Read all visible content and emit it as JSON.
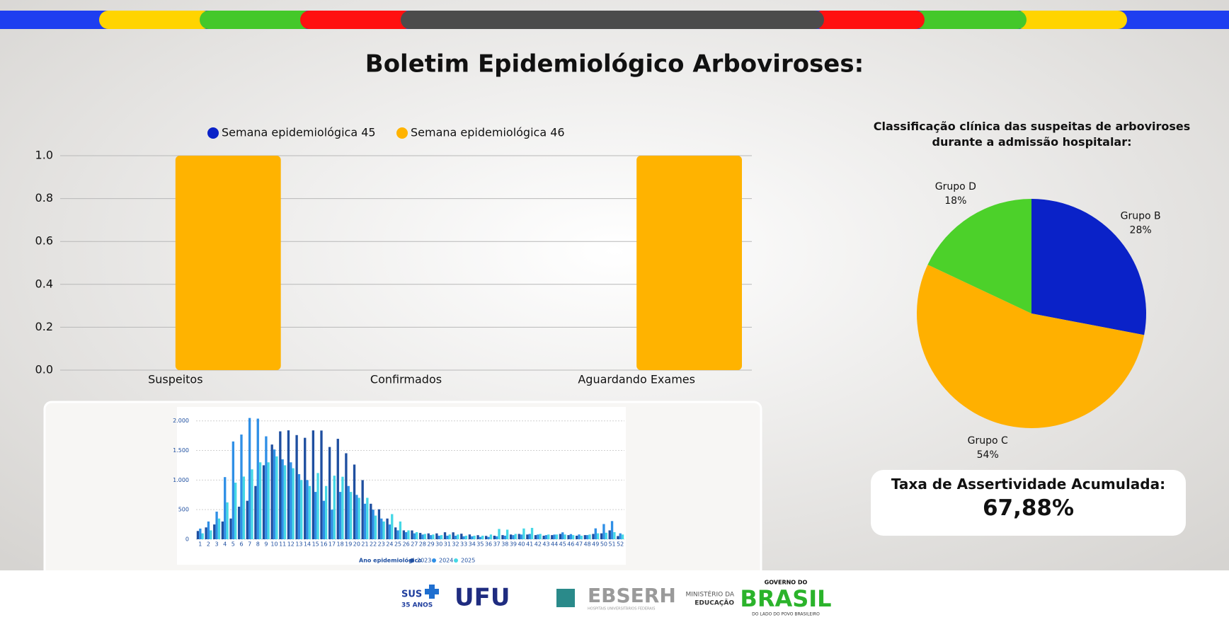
{
  "header": {
    "title": "Boletim Epidemiológico Arboviroses:"
  },
  "chart_data": [
    {
      "type": "bar",
      "categories": [
        "Suspeitos",
        "Confirmados",
        "Aguardando Exames"
      ],
      "series": [
        {
          "name": "Semana epidemiológica 45",
          "color": "#0a22c8",
          "values": [
            0,
            0,
            0
          ]
        },
        {
          "name": "Semana epidemiológica 46",
          "color": "#ffb300",
          "values": [
            1,
            0,
            1
          ]
        }
      ],
      "ylim": [
        0,
        1
      ],
      "yticks": [
        {
          "value": 0,
          "label": "0.0"
        },
        {
          "value": 0.2,
          "label": "0.2"
        },
        {
          "value": 0.4,
          "label": "0.4"
        },
        {
          "value": 0.6,
          "label": "0.6"
        },
        {
          "value": 0.8,
          "label": "0.8"
        },
        {
          "value": 1,
          "label": "1.0"
        }
      ],
      "grid": true,
      "legend": "top"
    },
    {
      "type": "bar",
      "legend_title": "Ano epidemiológico",
      "categories": [
        1,
        2,
        3,
        4,
        5,
        6,
        7,
        8,
        9,
        10,
        11,
        12,
        13,
        14,
        15,
        16,
        17,
        18,
        19,
        20,
        21,
        22,
        23,
        24,
        25,
        26,
        27,
        28,
        29,
        30,
        31,
        32,
        33,
        34,
        35,
        36,
        37,
        38,
        39,
        40,
        41,
        42,
        43,
        44,
        45,
        46,
        47,
        48,
        49,
        50,
        51,
        52
      ],
      "series": [
        {
          "name": "2023",
          "color": "#1f4fa0",
          "values": [
            140,
            200,
            250,
            300,
            350,
            550,
            650,
            900,
            1250,
            1600,
            1823,
            1840,
            1760,
            1714,
            1839,
            1837,
            1559,
            1697,
            1453,
            1262,
            999,
            600,
            506,
            350,
            200,
            150,
            149,
            107,
            99,
            99,
            118,
            117,
            94,
            81,
            69,
            57,
            60,
            70,
            80,
            90,
            80,
            70,
            60,
            70,
            90,
            70,
            60,
            70,
            90,
            100,
            150,
            54
          ]
        },
        {
          "name": "2024",
          "color": "#2f8fe6",
          "values": [
            180,
            300,
            467,
            1050,
            1652,
            1769,
            2049,
            2038,
            1739,
            1517,
            1350,
            1300,
            1100,
            1000,
            800,
            650,
            500,
            800,
            900,
            750,
            600,
            500,
            350,
            250,
            150,
            120,
            100,
            80,
            70,
            60,
            60,
            60,
            50,
            50,
            40,
            40,
            50,
            60,
            70,
            80,
            90,
            80,
            70,
            79,
            117,
            87,
            81,
            70,
            184,
            257,
            307,
            100
          ]
        },
        {
          "name": "2025",
          "color": "#45d8e6",
          "values": [
            100,
            150,
            350,
            623,
            956,
            1059,
            1181,
            1300,
            1300,
            1400,
            1250,
            1200,
            1000,
            900,
            1119,
            900,
            1074,
            1056,
            800,
            700,
            700,
            400,
            300,
            425,
            300,
            150,
            120,
            90,
            80,
            70,
            80,
            80,
            60,
            60,
            60,
            80,
            174,
            162,
            90,
            182,
            192,
            90,
            80,
            80,
            80,
            70,
            60,
            80,
            100,
            110,
            120,
            80
          ]
        }
      ],
      "ylim": [
        0,
        2200
      ],
      "yticks": [
        0,
        500,
        {
          "value": 1000,
          "label": "1.000"
        },
        {
          "value": 1500,
          "label": "1.500"
        },
        {
          "value": 2000,
          "label": "2.000"
        }
      ],
      "grid": true,
      "legend": "bottom"
    },
    {
      "type": "pie",
      "title": "Classificação clínica das suspeitas de arboviroses durante a admissão hospitalar:",
      "categories": [
        "Grupo B",
        "Grupo C",
        "Grupo D"
      ],
      "values": [
        28,
        54,
        18
      ],
      "value_labels": [
        "28%",
        "54%",
        "18%"
      ],
      "colors": [
        "#0a22c8",
        "#ffb000",
        "#4cd12a"
      ]
    }
  ],
  "kpi": {
    "label": "Taxa de Assertividade Acumulada:",
    "value": "67,88%"
  },
  "footer": {
    "sus": "SUS",
    "sus_years": "35 ANOS",
    "ufu": "UFU",
    "ebserh": "EBSERH",
    "ebserh_sub": "HOSPITAIS UNIVERSITÁRIOS FEDERAIS",
    "mec_1": "MINISTÉRIO DA",
    "mec_2": "EDUCAÇÃO",
    "gov_1": "GOVERNO DO",
    "gov_2": "BRASIL",
    "gov_3": "DO LADO DO POVO BRASILEIRO"
  }
}
